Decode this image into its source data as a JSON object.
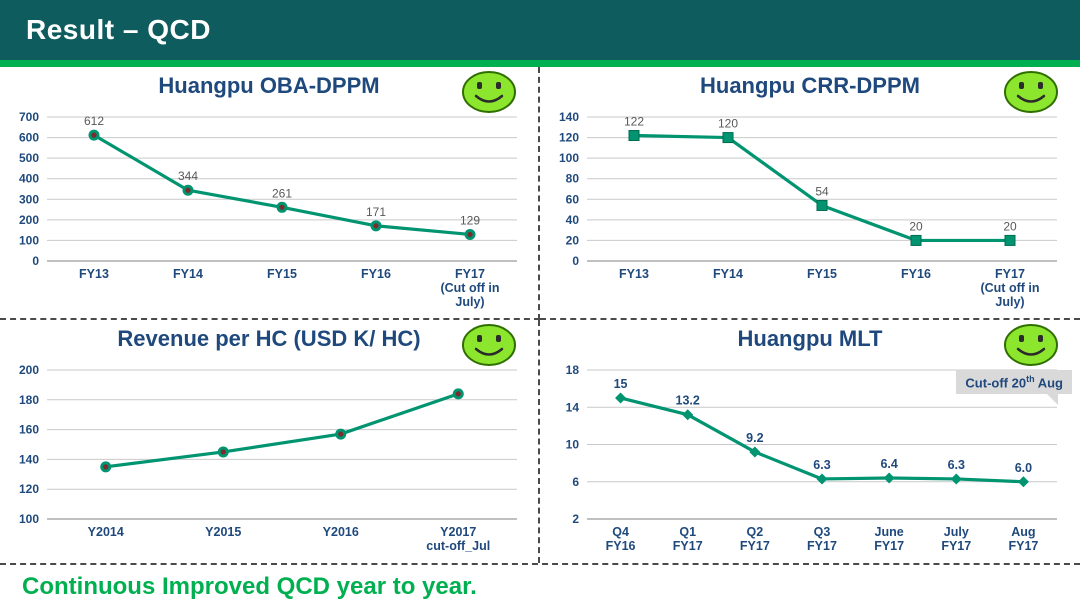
{
  "header": {
    "title": "Result – QCD"
  },
  "footer": {
    "text": "Continuous Improved QCD year to year."
  },
  "colors": {
    "header_bg": "#0E5C5E",
    "accent_green": "#00B050",
    "chart_title_blue": "#1F497D",
    "line_green": "#009470",
    "marker_center_red": "#7B2C2C",
    "axis_label_blue": "#1F497D",
    "data_label_gray": "#595959",
    "footer_green": "#00B050",
    "smiley_fill": "#8CE62E",
    "callout_bg": "#d9d9d9"
  },
  "chart_data": [
    {
      "type": "line",
      "title": "Huangpu OBA-DPPM",
      "categories": [
        [
          "FY13"
        ],
        [
          "FY14"
        ],
        [
          "FY15"
        ],
        [
          "FY16"
        ],
        [
          "FY17",
          "(Cut off in",
          "July)"
        ]
      ],
      "values": [
        612,
        344,
        261,
        171,
        129
      ],
      "labels": [
        "612",
        "344",
        "261",
        "171",
        "129"
      ],
      "label_style": "gray",
      "marker": "circle",
      "ylim": [
        0,
        700
      ],
      "yticks": [
        0,
        100,
        200,
        300,
        400,
        500,
        600,
        700
      ],
      "grid": true,
      "legend": "none"
    },
    {
      "type": "line",
      "title": "Huangpu CRR-DPPM",
      "categories": [
        [
          "FY13"
        ],
        [
          "FY14"
        ],
        [
          "FY15"
        ],
        [
          "FY16"
        ],
        [
          "FY17",
          "(Cut off in",
          "July)"
        ]
      ],
      "values": [
        122,
        120,
        54,
        20,
        20
      ],
      "labels": [
        "122",
        "120",
        "54",
        "20",
        "20"
      ],
      "label_style": "gray",
      "marker": "square",
      "ylim": [
        0,
        140
      ],
      "yticks": [
        0,
        20,
        40,
        60,
        80,
        100,
        120,
        140
      ],
      "grid": true,
      "legend": "none"
    },
    {
      "type": "line",
      "title": "Revenue per HC (USD K/ HC)",
      "categories": [
        [
          "Y2014"
        ],
        [
          "Y2015"
        ],
        [
          "Y2016"
        ],
        [
          "Y2017",
          "cut-off_Jul"
        ]
      ],
      "values": [
        135,
        145,
        157,
        184
      ],
      "labels": [],
      "label_style": "gray",
      "marker": "circle",
      "ylim": [
        100,
        200
      ],
      "yticks": [
        100,
        120,
        140,
        160,
        180,
        200
      ],
      "grid": true,
      "legend": "none"
    },
    {
      "type": "line",
      "title": "Huangpu MLT",
      "categories": [
        [
          "Q4",
          "FY16"
        ],
        [
          "Q1",
          "FY17"
        ],
        [
          "Q2",
          "FY17"
        ],
        [
          "Q3",
          "FY17"
        ],
        [
          "June",
          "FY17"
        ],
        [
          "July",
          "FY17"
        ],
        [
          "Aug",
          "FY17"
        ]
      ],
      "values": [
        15,
        13.2,
        9.2,
        6.3,
        6.4,
        6.3,
        6.0
      ],
      "labels": [
        "15",
        "13.2",
        "9.2",
        "6.3",
        "6.4",
        "6.3",
        "6.0"
      ],
      "label_style": "blue",
      "marker": "diamond",
      "ylim": [
        2,
        18
      ],
      "yticks": [
        2,
        6,
        10,
        14,
        18
      ],
      "grid": true,
      "legend": "none",
      "callout": {
        "pre": "Cut-off 20",
        "sup": "th",
        "post": " Aug"
      }
    }
  ]
}
